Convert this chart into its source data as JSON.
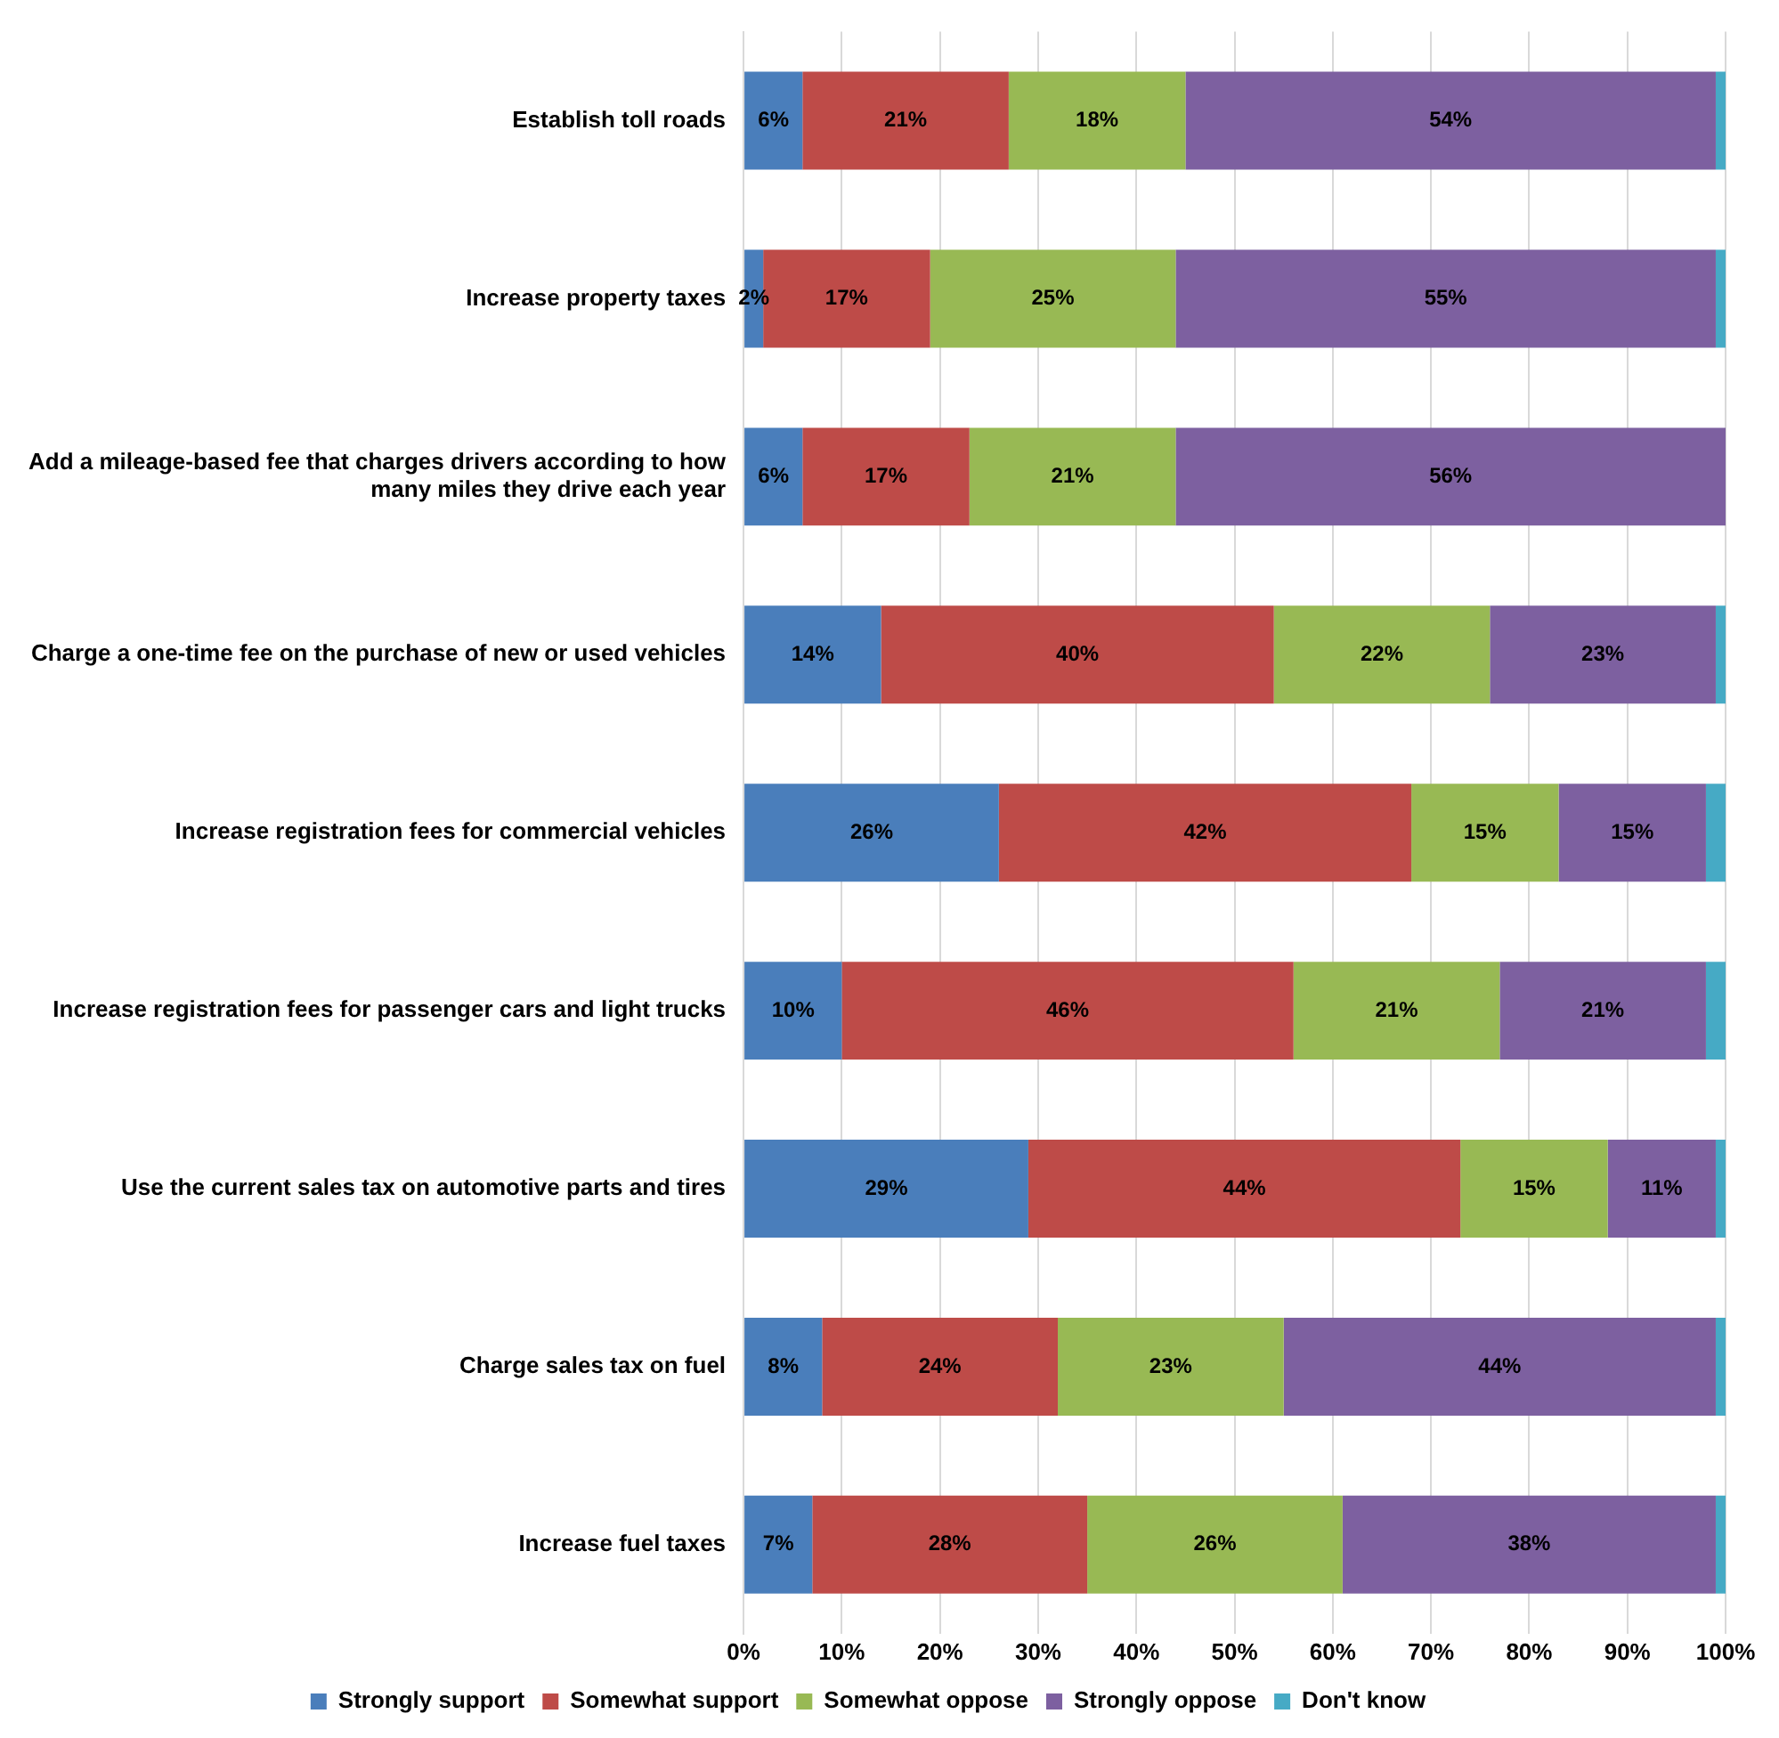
{
  "chart_data": {
    "type": "bar",
    "orientation": "horizontal",
    "stacked": true,
    "categories": [
      "Establish toll roads",
      "Increase property taxes",
      "Add a mileage-based fee that charges drivers according to how many miles they drive each year",
      "Charge a one-time fee on the purchase of new or used vehicles",
      "Increase registration fees for commercial vehicles",
      "Increase registration fees for passenger cars and light trucks",
      "Use the current sales tax on automotive parts and tires",
      "Charge sales tax on fuel",
      "Increase fuel taxes"
    ],
    "series": [
      {
        "name": "Strongly support",
        "color": "#4a7ebb",
        "values": [
          6,
          2,
          6,
          14,
          26,
          10,
          29,
          8,
          7
        ],
        "value_labels": [
          "6%",
          "2%",
          "6%",
          "14%",
          "26%",
          "10%",
          "29%",
          "8%",
          "7%"
        ]
      },
      {
        "name": "Somewhat support",
        "color": "#be4b48",
        "values": [
          21,
          17,
          17,
          40,
          42,
          46,
          44,
          24,
          28
        ],
        "value_labels": [
          "21%",
          "17%",
          "17%",
          "40%",
          "42%",
          "46%",
          "44%",
          "24%",
          "28%"
        ]
      },
      {
        "name": "Somewhat oppose",
        "color": "#98b954",
        "values": [
          18,
          25,
          21,
          22,
          15,
          21,
          15,
          23,
          26
        ],
        "value_labels": [
          "18%",
          "25%",
          "21%",
          "22%",
          "15%",
          "21%",
          "15%",
          "23%",
          "26%"
        ]
      },
      {
        "name": "Strongly oppose",
        "color": "#7d60a0",
        "values": [
          54,
          55,
          56,
          23,
          15,
          21,
          11,
          44,
          38
        ],
        "value_labels": [
          "54%",
          "55%",
          "56%",
          "23%",
          "15%",
          "21%",
          "11%",
          "44%",
          "38%"
        ]
      },
      {
        "name": "Don't know",
        "color": "#46aac5",
        "values": [
          1,
          1,
          0,
          1,
          2,
          2,
          1,
          1,
          1
        ]
      }
    ],
    "xlim": [
      0,
      100
    ],
    "xticks": [
      {
        "value": 0,
        "label": "0%"
      },
      {
        "value": 10,
        "label": "10%"
      },
      {
        "value": 20,
        "label": "20%"
      },
      {
        "value": 30,
        "label": "30%"
      },
      {
        "value": 40,
        "label": "40%"
      },
      {
        "value": 50,
        "label": "50%"
      },
      {
        "value": 60,
        "label": "60%"
      },
      {
        "value": 70,
        "label": "70%"
      },
      {
        "value": 80,
        "label": "80%"
      },
      {
        "value": 90,
        "label": "90%"
      },
      {
        "value": 100,
        "label": "100%"
      }
    ],
    "grid": "x",
    "legend": "bottom"
  }
}
